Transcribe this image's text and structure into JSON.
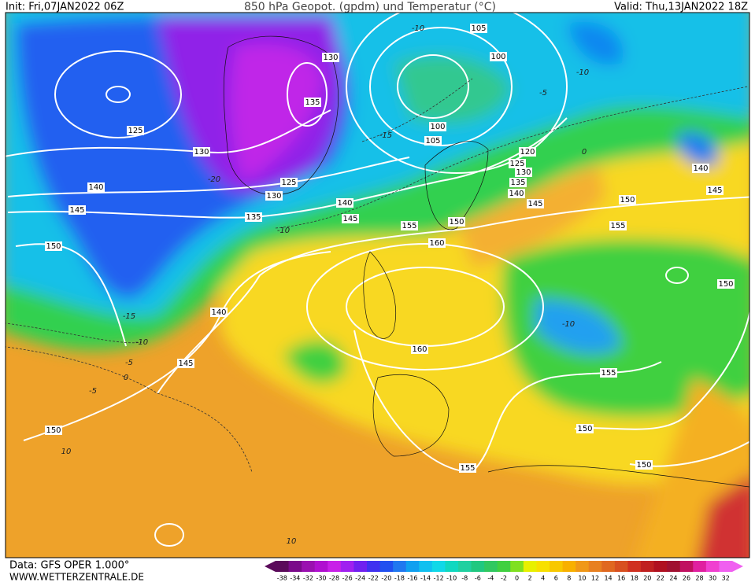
{
  "header": {
    "init": "Init: Fri,07JAN2022 06Z",
    "title": "850 hPa Geopot. (gpdm) und Temperatur (°C)",
    "valid": "Valid: Thu,13JAN2022 18Z"
  },
  "footer": {
    "data_source": "Data: GFS OPER 1.000°",
    "website": "WWW.WETTERZENTRALE.DE"
  },
  "color_scale": {
    "labels": [
      -38,
      -34,
      -32,
      -30,
      -28,
      -26,
      -24,
      -22,
      -20,
      -18,
      -16,
      -14,
      -12,
      -10,
      -8,
      -6,
      -4,
      -2,
      0,
      2,
      4,
      6,
      8,
      10,
      12,
      14,
      16,
      18,
      20,
      22,
      24,
      26,
      28,
      30,
      32
    ],
    "colors": [
      "#5a0a5a",
      "#7a0a8a",
      "#9a10b0",
      "#b010d0",
      "#c820e8",
      "#a020f0",
      "#7020f0",
      "#4030f0",
      "#2050f0",
      "#2078f0",
      "#10a0f0",
      "#10c0f0",
      "#10d8e8",
      "#10d8c0",
      "#20d0a0",
      "#20c880",
      "#30c860",
      "#40d040",
      "#80e020",
      "#e8f000",
      "#f8e000",
      "#f8c800",
      "#f8b000",
      "#f09818",
      "#e88020",
      "#e06820",
      "#d85020",
      "#d03020",
      "#c02020",
      "#b01020",
      "#a01030",
      "#c01060",
      "#e020a0",
      "#f040d0",
      "#f060f0"
    ]
  },
  "contour_labels": {
    "geopotential": [
      "130",
      "135",
      "125",
      "130",
      "125",
      "130",
      "140",
      "145",
      "150",
      "135",
      "140",
      "145",
      "140",
      "145",
      "150",
      "105",
      "100",
      "100",
      "105",
      "120",
      "125",
      "130",
      "135",
      "140",
      "145",
      "150",
      "155",
      "160",
      "150",
      "155",
      "140",
      "145",
      "150",
      "160",
      "155",
      "150",
      "150",
      "155"
    ],
    "temperature": [
      "-10",
      "-15",
      "-10",
      "-15",
      "-10",
      "-5",
      "0",
      "-5",
      "10",
      "10",
      "-10",
      "-5",
      "0",
      "-10",
      "-20"
    ]
  }
}
